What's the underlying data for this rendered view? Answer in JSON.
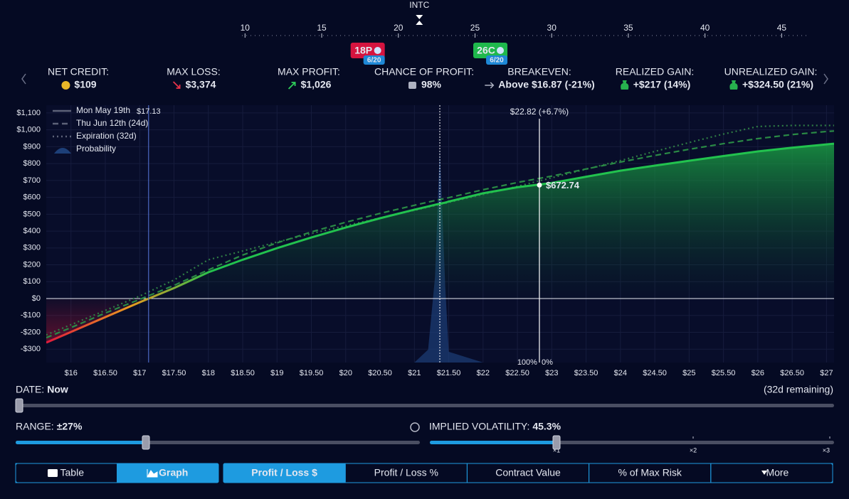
{
  "ladder": {
    "symbol": "INTC",
    "xlim": [
      9.8,
      46.7
    ],
    "ticks": [
      10,
      15,
      20,
      25,
      30,
      35,
      40,
      45
    ],
    "price": 21.37,
    "legs": [
      {
        "label": "18P",
        "strike": 18,
        "expiry": "6/20",
        "color": "#d5143f"
      },
      {
        "label": "26C",
        "strike": 26,
        "expiry": "6/20",
        "color": "#1fb84c"
      }
    ]
  },
  "stats": [
    {
      "label": "NET CREDIT:",
      "value": "$109"
    },
    {
      "label": "MAX LOSS:",
      "value": "$3,374"
    },
    {
      "label": "MAX PROFIT:",
      "value": "$1,026"
    },
    {
      "label": "CHANCE OF PROFIT:",
      "value": "98%"
    },
    {
      "label": "BREAKEVEN:",
      "value": "Above $16.87 (-21%)"
    },
    {
      "label": "REALIZED GAIN:",
      "value": "+$217 (14%)"
    },
    {
      "label": "UNREALIZED GAIN:",
      "value": "+$324.50 (21%)"
    }
  ],
  "chart_data": {
    "type": "line",
    "x": [
      15.64,
      16,
      16.5,
      17,
      17.5,
      18,
      18.5,
      19,
      19.5,
      20,
      20.5,
      21,
      21.2,
      21.3,
      21.37,
      21.45,
      21.5,
      22,
      22.5,
      23,
      23.5,
      24,
      24.5,
      25,
      25.5,
      26,
      26.5,
      27,
      27.11
    ],
    "series": [
      {
        "name": "Mon May 19th",
        "color": "#22c24e",
        "values": [
          -261,
          -198,
          -110,
          -22,
          62,
          156,
          230,
          299,
          362,
          421,
          476,
          527,
          546,
          556,
          562,
          569,
          575,
          624,
          660,
          685,
          722,
          758,
          788,
          817,
          845,
          872,
          894,
          914,
          918
        ]
      },
      {
        "name": "Thu Jun 12th (24d)",
        "color": "#2a8a45",
        "values": [
          -232,
          -172,
          -86,
          -5,
          78,
          170,
          258,
          330,
          395,
          452,
          505,
          553,
          572,
          581,
          587,
          594,
          598,
          645,
          688,
          726,
          768,
          809,
          848,
          885,
          918,
          948,
          972,
          990,
          993
        ]
      },
      {
        "name": "Expiration (32d)",
        "color": "#2f7d45",
        "values": [
          -215,
          -155,
          -70,
          15,
          110,
          230,
          282,
          335,
          385,
          432,
          478,
          523,
          542,
          551,
          558,
          565,
          570,
          617,
          665,
          716,
          767,
          818,
          872,
          925,
          975,
          1020,
          1026,
          1026,
          1026
        ]
      },
      {
        "name": "Probability",
        "color": "#1d3f78",
        "axis": "y2",
        "values": [
          0,
          0,
          0,
          0,
          0,
          0,
          0,
          0,
          0,
          0,
          0,
          0,
          6,
          40,
          100,
          35,
          5,
          0,
          0,
          0,
          0,
          0,
          0,
          0,
          0,
          0,
          0,
          0,
          0
        ]
      }
    ],
    "xlim": [
      15.64,
      27.11
    ],
    "ylim": [
      -379,
      1146
    ],
    "y2lim": [
      0,
      120
    ],
    "xticks": [
      {
        "value": 16,
        "label": "$16"
      },
      {
        "value": 16.5,
        "label": "$16.50"
      },
      {
        "value": 17,
        "label": "$17"
      },
      {
        "value": 17.5,
        "label": "$17.50"
      },
      {
        "value": 18,
        "label": "$18"
      },
      {
        "value": 18.5,
        "label": "$18.50"
      },
      {
        "value": 19,
        "label": "$19"
      },
      {
        "value": 19.5,
        "label": "$19.50"
      },
      {
        "value": 20,
        "label": "$20"
      },
      {
        "value": 20.5,
        "label": "$20.50"
      },
      {
        "value": 21,
        "label": "$21"
      },
      {
        "value": 21.5,
        "label": "$21.50"
      },
      {
        "value": 22,
        "label": "$22"
      },
      {
        "value": 22.5,
        "label": "$22.50"
      },
      {
        "value": 23,
        "label": "$23"
      },
      {
        "value": 23.5,
        "label": "$23.50"
      },
      {
        "value": 24,
        "label": "$24"
      },
      {
        "value": 24.5,
        "label": "$24.50"
      },
      {
        "value": 25,
        "label": "$25"
      },
      {
        "value": 25.5,
        "label": "$25.50"
      },
      {
        "value": 26,
        "label": "$26"
      },
      {
        "value": 26.5,
        "label": "$26.50"
      },
      {
        "value": 27,
        "label": "$27"
      }
    ],
    "yticks": [
      {
        "value": -300,
        "label": "-$300"
      },
      {
        "value": -200,
        "label": "-$200"
      },
      {
        "value": -100,
        "label": "-$100"
      },
      {
        "value": 0,
        "label": "$0"
      },
      {
        "value": 100,
        "label": "$100"
      },
      {
        "value": 200,
        "label": "$200"
      },
      {
        "value": 300,
        "label": "$300"
      },
      {
        "value": 400,
        "label": "$400"
      },
      {
        "value": 500,
        "label": "$500"
      },
      {
        "value": 600,
        "label": "$600"
      },
      {
        "value": 700,
        "label": "$700"
      },
      {
        "value": 800,
        "label": "$800"
      },
      {
        "value": 900,
        "label": "$900"
      },
      {
        "value": 1000,
        "label": "$1,000"
      },
      {
        "value": 1100,
        "label": "$1,100"
      }
    ],
    "grid": true,
    "current_price": 21.37,
    "breakeven": {
      "value": 17.13,
      "label": "$17.13"
    },
    "cursor": {
      "x": 22.82,
      "label": "$22.82 (+6.7%)",
      "value": 672.74,
      "value_label": "$672.74",
      "left_label": "100%",
      "right_label": "0%"
    }
  },
  "controls": {
    "date": {
      "label": "DATE:",
      "value": "Now",
      "remaining": "(32d remaining)"
    },
    "range": {
      "label": "RANGE:",
      "value": "±27%"
    },
    "iv": {
      "label": "IMPLIED VOLATILITY:",
      "value": "45.3%",
      "multiplier": 1,
      "marks": [
        {
          "value": 1,
          "label": "×1"
        },
        {
          "value": 2,
          "label": "×2"
        },
        {
          "value": 3,
          "label": "×3"
        }
      ]
    }
  },
  "tabs": {
    "view": [
      "Table",
      "Graph"
    ],
    "view_active": 1,
    "metric": [
      "Profit / Loss $",
      "Profit / Loss %",
      "Contract Value",
      "% of Max Risk",
      "More"
    ],
    "metric_active": 0
  }
}
